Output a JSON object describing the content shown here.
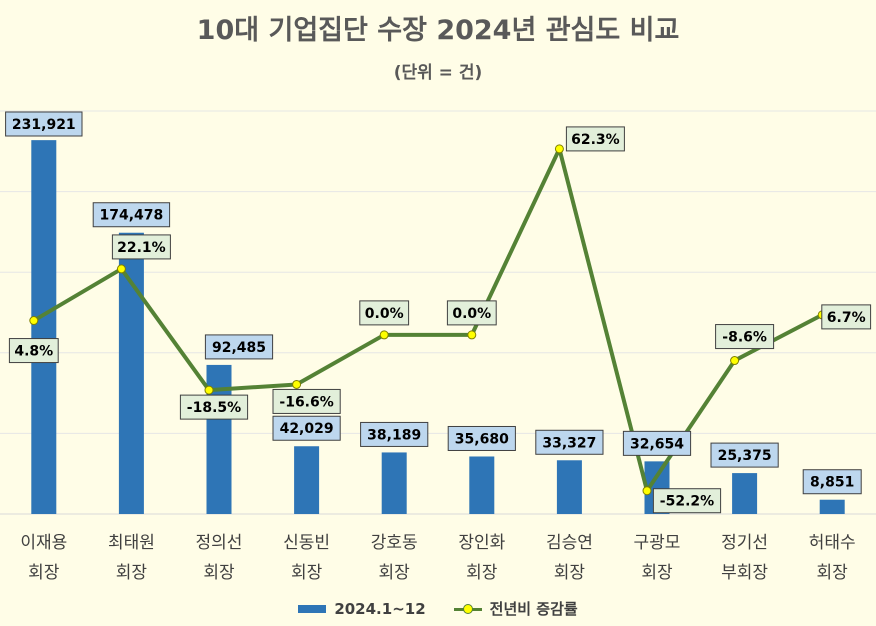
{
  "title": "10대 기업집단 수장 2024년 관심도 비교",
  "subtitle": "(단위 = 건)",
  "colors": {
    "background": "#fffde7",
    "bar": "#2e75b6",
    "bar_label_fill": "#bdd7ee",
    "line": "#548235",
    "marker": "#ffff00",
    "line_label_fill": "#e2efda",
    "gridline": "#e6e6e6"
  },
  "chart_data": {
    "type": "bar",
    "categories": [
      [
        "이재용",
        "회장"
      ],
      [
        "최태원",
        "회장"
      ],
      [
        "정의선",
        "회장"
      ],
      [
        "신동빈",
        "회장"
      ],
      [
        "강호동",
        "회장"
      ],
      [
        "장인화",
        "회장"
      ],
      [
        "김승연",
        "회장"
      ],
      [
        "구광모",
        "회장"
      ],
      [
        "정기선",
        "부회장"
      ],
      [
        "허태수",
        "회장"
      ]
    ],
    "bar_series": {
      "name": "2024.1~12",
      "values": [
        231921,
        174478,
        92485,
        42029,
        38189,
        35680,
        33327,
        32654,
        25375,
        8851
      ],
      "labels": [
        "231,921",
        "174,478",
        "92,485",
        "42,029",
        "38,189",
        "35,680",
        "33,327",
        "32,654",
        "25,375",
        "8,851"
      ]
    },
    "line_series": {
      "name": "전년비 증감률",
      "values": [
        4.8,
        22.1,
        -18.5,
        -16.6,
        0.0,
        0.0,
        62.3,
        -52.2,
        -8.6,
        6.7
      ],
      "labels": [
        "4.8%",
        "22.1%",
        "-18.5%",
        "-16.6%",
        "0.0%",
        "0.0%",
        "62.3%",
        "-52.2%",
        "-8.6%",
        "6.7%"
      ]
    },
    "bar_axis_ylim": [
      0,
      250000
    ],
    "line_axis_ylim": [
      -60,
      75
    ],
    "grid": true,
    "legend_position": "bottom"
  }
}
